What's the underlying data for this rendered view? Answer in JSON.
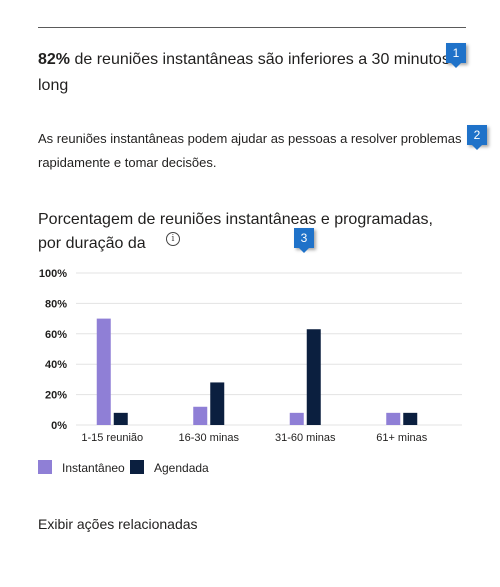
{
  "headline": {
    "percent": "82%",
    "text": " de reuniões instantâneas são inferiores a 30 minutos long"
  },
  "description": "As reuniões instantâneas podem ajudar as pessoas a resolver problemas rapidamente e tomar decisões.",
  "callouts": [
    "1",
    "2",
    "3"
  ],
  "chart_title": "Porcentagem de reuniões instantâneas e programadas, por duração da",
  "info_icon": "i",
  "colors": {
    "instant": "#8f7fd6",
    "scheduled": "#0b1f3f",
    "accent": "#1f72c9"
  },
  "chart_data": {
    "type": "bar",
    "categories": [
      "1-15 reunião",
      "16-30 minas",
      "31-60 minas",
      "61+ minas"
    ],
    "series": [
      {
        "name": "Instantâneo",
        "values": [
          70,
          12,
          8,
          8
        ]
      },
      {
        "name": "Agendada",
        "values": [
          8,
          28,
          63,
          8
        ]
      }
    ],
    "y_ticks": [
      "100%",
      "80%",
      "60%",
      "40%",
      "20%",
      "0%"
    ],
    "ylim": [
      0,
      100
    ],
    "grid": true,
    "legend": "bottom-left"
  },
  "related_actions": "Exibir ações relacionadas"
}
